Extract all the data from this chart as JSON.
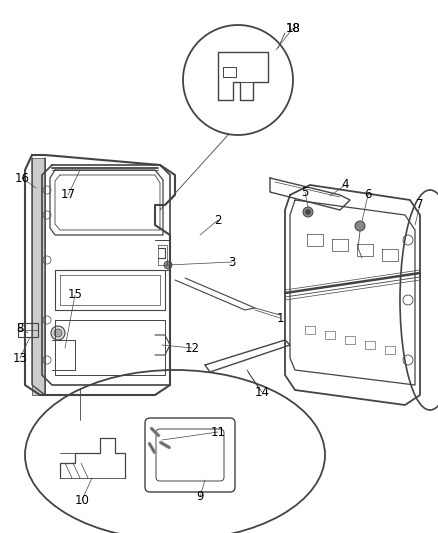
{
  "bg_color": "#ffffff",
  "line_color": "#444444",
  "label_color": "#000000",
  "figsize": [
    4.38,
    5.33
  ],
  "dpi": 100,
  "note_fontsize": 8.5
}
